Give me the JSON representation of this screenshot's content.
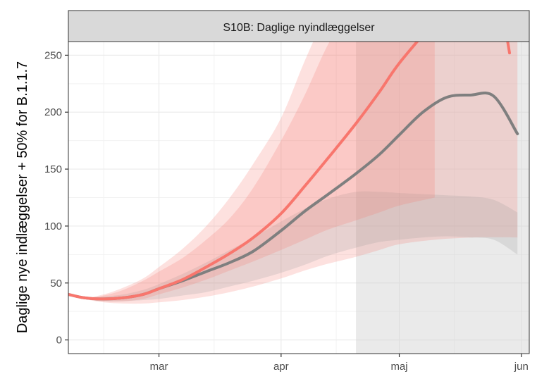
{
  "chart_data": {
    "type": "line",
    "panel_title": "S10B: Daglige nyindlæggelser",
    "ylabel": "Daglige nye indlæggelser + 50% for B.1.1.7",
    "xlabel": "",
    "ylim": [
      -12,
      262
    ],
    "xlim": [
      "2021-02-06",
      "2021-06-03"
    ],
    "y_ticks": [
      0,
      50,
      100,
      150,
      200,
      250
    ],
    "x_ticks": [
      {
        "date": "2021-03-01",
        "label": "mar"
      },
      {
        "date": "2021-04-01",
        "label": "apr"
      },
      {
        "date": "2021-05-01",
        "label": "maj"
      },
      {
        "date": "2021-06-01",
        "label": "jun"
      }
    ],
    "x_minor_gridlines": [
      "2021-02-15",
      "2021-03-15",
      "2021-04-15",
      "2021-05-15"
    ],
    "grid": true,
    "projection_start": "2021-04-20",
    "series": [
      {
        "color": "#f8766d",
        "x": [
          "2021-02-06",
          "2021-02-10",
          "2021-02-15",
          "2021-02-20",
          "2021-02-25",
          "2021-03-01",
          "2021-03-07",
          "2021-03-13",
          "2021-03-19",
          "2021-03-25",
          "2021-04-01",
          "2021-04-07",
          "2021-04-13",
          "2021-04-20",
          "2021-04-26",
          "2021-05-01",
          "2021-05-10"
        ],
        "y": [
          40,
          37,
          36,
          37,
          40,
          45,
          53,
          64,
          76,
          90,
          111,
          135,
          160,
          190,
          218,
          243,
          280
        ],
        "lower": [
          40,
          36,
          34,
          34,
          36,
          40,
          46,
          53,
          61,
          69,
          79,
          88,
          97,
          105,
          112,
          118,
          125
        ],
        "upper": [
          40,
          37,
          39,
          44,
          52,
          60,
          72,
          88,
          107,
          134,
          175,
          215,
          260,
          300,
          330,
          360,
          390
        ]
      },
      {
        "color": "#7f7f7f",
        "x": [
          "2021-02-06",
          "2021-02-10",
          "2021-02-15",
          "2021-02-20",
          "2021-02-25",
          "2021-03-01",
          "2021-03-07",
          "2021-03-13",
          "2021-03-19",
          "2021-03-25",
          "2021-04-01",
          "2021-04-07",
          "2021-04-13",
          "2021-04-20",
          "2021-04-26",
          "2021-05-01",
          "2021-05-07",
          "2021-05-13",
          "2021-05-19",
          "2021-05-25",
          "2021-05-31"
        ],
        "y": [
          40,
          37,
          36,
          37,
          40,
          45,
          52,
          60,
          68,
          78,
          96,
          113,
          128,
          146,
          163,
          180,
          200,
          213,
          215,
          214,
          181
        ],
        "lower": [
          40,
          36,
          34,
          34,
          35,
          36,
          39,
          42,
          47,
          52,
          59,
          66,
          74,
          81,
          86,
          88,
          90,
          91,
          90,
          88,
          75
        ],
        "upper": [
          40,
          37,
          38,
          40,
          44,
          49,
          58,
          68,
          79,
          90,
          104,
          115,
          124,
          130,
          130,
          129,
          128,
          127,
          126,
          123,
          112
        ]
      }
    ],
    "bands": [
      {
        "x": [
          "2021-02-06",
          "2021-02-10",
          "2021-02-15",
          "2021-02-20",
          "2021-02-25",
          "2021-03-01",
          "2021-03-07",
          "2021-03-13",
          "2021-03-19",
          "2021-03-25",
          "2021-04-01",
          "2021-04-07",
          "2021-04-13",
          "2021-04-20",
          "2021-04-26",
          "2021-05-01",
          "2021-05-10",
          "2021-05-20",
          "2021-05-31"
        ],
        "lower": [
          40,
          36,
          33,
          32,
          32,
          33,
          35,
          38,
          42,
          47,
          54,
          61,
          67,
          73,
          79,
          84,
          88,
          90,
          90
        ],
        "upper": [
          40,
          37,
          40,
          46,
          54,
          64,
          80,
          100,
          125,
          155,
          195,
          245,
          290,
          330,
          360,
          390,
          420,
          450,
          480
        ]
      }
    ]
  }
}
